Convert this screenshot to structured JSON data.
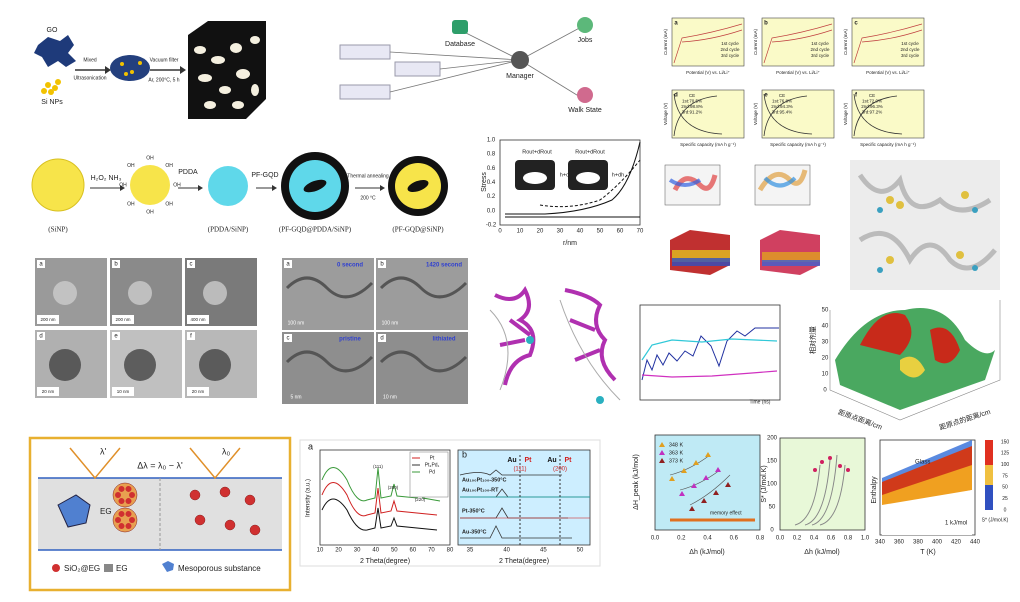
{
  "synthesis_go": {
    "labels": [
      "GO",
      "Si NPs",
      "Mixed",
      "Ultrasonication",
      "Vacuum filter",
      "Ar, 200°C, 5 h"
    ]
  },
  "workflow": {
    "nodes": [
      "Database",
      "Manager",
      "Jobs",
      "Walk State"
    ]
  },
  "electrochem": {
    "panels": [
      "a",
      "b",
      "c",
      "d",
      "e",
      "f"
    ],
    "legend": [
      "1st cycle",
      "2nd cycle",
      "3rd cycle"
    ],
    "x_label_top": "Potential (V) vs. Li/Li⁺",
    "y_label_top": "Current (mA)",
    "x_label_bottom": "Specific capacity (mA h g⁻¹)",
    "y_label_bottom": "Voltage (V)",
    "ce": [
      [
        "CE",
        "1st:70.5%",
        "2nd:98.8%",
        "3rd:91.2%"
      ],
      [
        "CE",
        "1st:76.8%",
        "2nd:94.3%",
        "3rd:95.4%"
      ],
      [
        "CE",
        "1st:72.0%",
        "2nd:96.3%",
        "3rd:97.2%"
      ]
    ]
  },
  "sinp": {
    "labels": [
      "H₂O₂ NH₃",
      "PDDA",
      "PF-GQD",
      "Thermal annealing",
      "200 °C"
    ],
    "captions": [
      "(SiNP)",
      "(PDDA/SiNP)",
      "(PF-GQD@PDDA/SiNP)",
      "(PF-GQD@SiNP)"
    ],
    "oh": "OH"
  },
  "stress": {
    "y_label": "Stress",
    "x_label": "r/nm",
    "xticks": [
      "0",
      "10",
      "20",
      "30",
      "40",
      "50",
      "60",
      "70"
    ],
    "yticks": [
      "-0.2",
      "0.0",
      "0.2",
      "0.4",
      "0.6",
      "0.8",
      "1.0"
    ],
    "labels": [
      "Rout+dRout",
      "h+dh"
    ]
  },
  "tem": {
    "panels": [
      "a",
      "b",
      "c",
      "d",
      "e",
      "f"
    ],
    "scales": [
      "200 nm",
      "200 nm",
      "400 nm",
      "20 nm",
      "10 nm",
      "20 nm"
    ]
  },
  "insitu": {
    "panels": [
      "a",
      "b",
      "c",
      "d"
    ],
    "times": [
      "0 second",
      "1420 second"
    ],
    "labels": [
      "pristine",
      "lithiated"
    ],
    "scales": [
      "100 nm",
      "100 nm",
      "5 nm",
      "10 nm"
    ]
  },
  "md": {
    "x_label": "Time (ns)"
  },
  "surface": {
    "z_label": "相对剂量",
    "x_label": "距原点距离/cm",
    "y_label": "距原点的距离/cm",
    "zticks": [
      "0",
      "10",
      "20",
      "30",
      "40",
      "50"
    ]
  },
  "schematic": {
    "formula": "Δλ = λ₀ − λ'",
    "lambda1": "λ'",
    "lambda0": "λ₀",
    "eg": "EG",
    "legend": [
      "SiO₂@EG",
      "EG",
      "Mesoporous substance"
    ]
  },
  "xrd": {
    "a": {
      "panel": "a",
      "legend": [
        "Pt",
        "Pt₃Pd₁",
        "Pd"
      ],
      "x_label": "2 Theta(degree)",
      "y_label": "Intensity (a.u.)",
      "xticks": [
        "10",
        "20",
        "30",
        "40",
        "50",
        "60",
        "70",
        "80"
      ],
      "peaks": [
        "(111)",
        "(200)",
        "(220)"
      ]
    },
    "b": {
      "panel": "b",
      "x_label": "2 Theta(degree)",
      "xticks": [
        "35",
        "40",
        "45",
        "50"
      ],
      "top": [
        "Au",
        "Pt",
        "Au",
        "Pt"
      ],
      "hkl": [
        "(111)",
        "(200)"
      ],
      "samples": [
        "Au₁₀₀Pt₁₀₀-350°C",
        "Au₁₀₀Pt₁₀₀-RT",
        "Pt-350°C",
        "Au-350°C"
      ]
    }
  },
  "dh": {
    "legend": [
      "348 K",
      "363 K",
      "373 K"
    ],
    "x_label": "Δh (kJ/mol)",
    "y_label": "ΔH_peak (kJ/mol)",
    "xticks": [
      "0.0",
      "0.2",
      "0.4",
      "0.6",
      "0.8"
    ],
    "arrow": "memory effect"
  },
  "s": {
    "x_label": "Δh (kJ/mol)",
    "y_label": "S* (J/mol.K)",
    "xticks": [
      "0.0",
      "0.2",
      "0.4",
      "0.6",
      "0.8",
      "1.0"
    ],
    "yticks": [
      "0",
      "50",
      "100",
      "150",
      "200"
    ]
  },
  "enthalpy": {
    "x_label": "T (K)",
    "y_label": "Enthalpy",
    "xticks": [
      "340",
      "360",
      "380",
      "400",
      "420",
      "440"
    ],
    "label": "Glass",
    "scale": "1 kJ/mol",
    "cbar": [
      "150",
      "125",
      "100",
      "75",
      "50",
      "25",
      "0"
    ],
    "cbar_label": "S* (J/mol.K)"
  }
}
